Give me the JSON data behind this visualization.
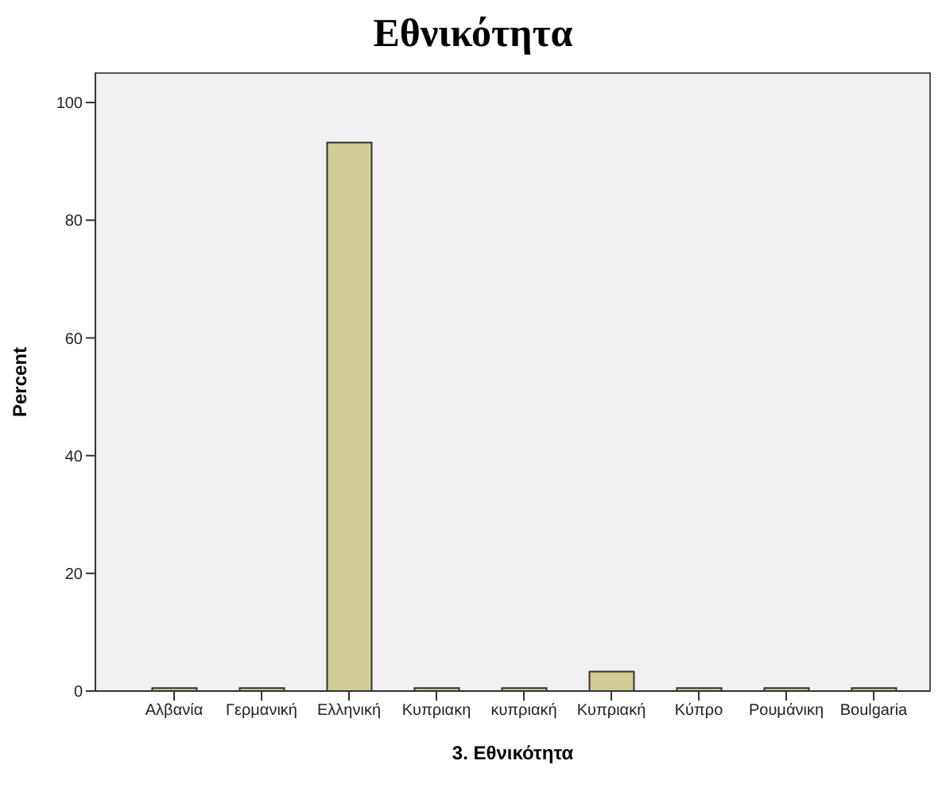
{
  "chart_data": {
    "type": "bar",
    "title": "Εθνικότητα",
    "xlabel": "3. Εθνικότητα",
    "ylabel": "Percent",
    "categories": [
      "Αλβανία",
      "Γερμανική",
      "Ελληνική",
      "Κυπριακη",
      "κυπριακή",
      "Κυπριακή",
      "Κύπρο",
      "Ρουμάνικη",
      "Boulgaria"
    ],
    "values": [
      0.5,
      0.5,
      93.2,
      0.5,
      0.5,
      3.3,
      0.5,
      0.5,
      0.5
    ],
    "color": "#d2cd96",
    "ylim": [
      0,
      105
    ],
    "yticks": [
      0,
      20,
      40,
      60,
      80,
      100
    ]
  }
}
